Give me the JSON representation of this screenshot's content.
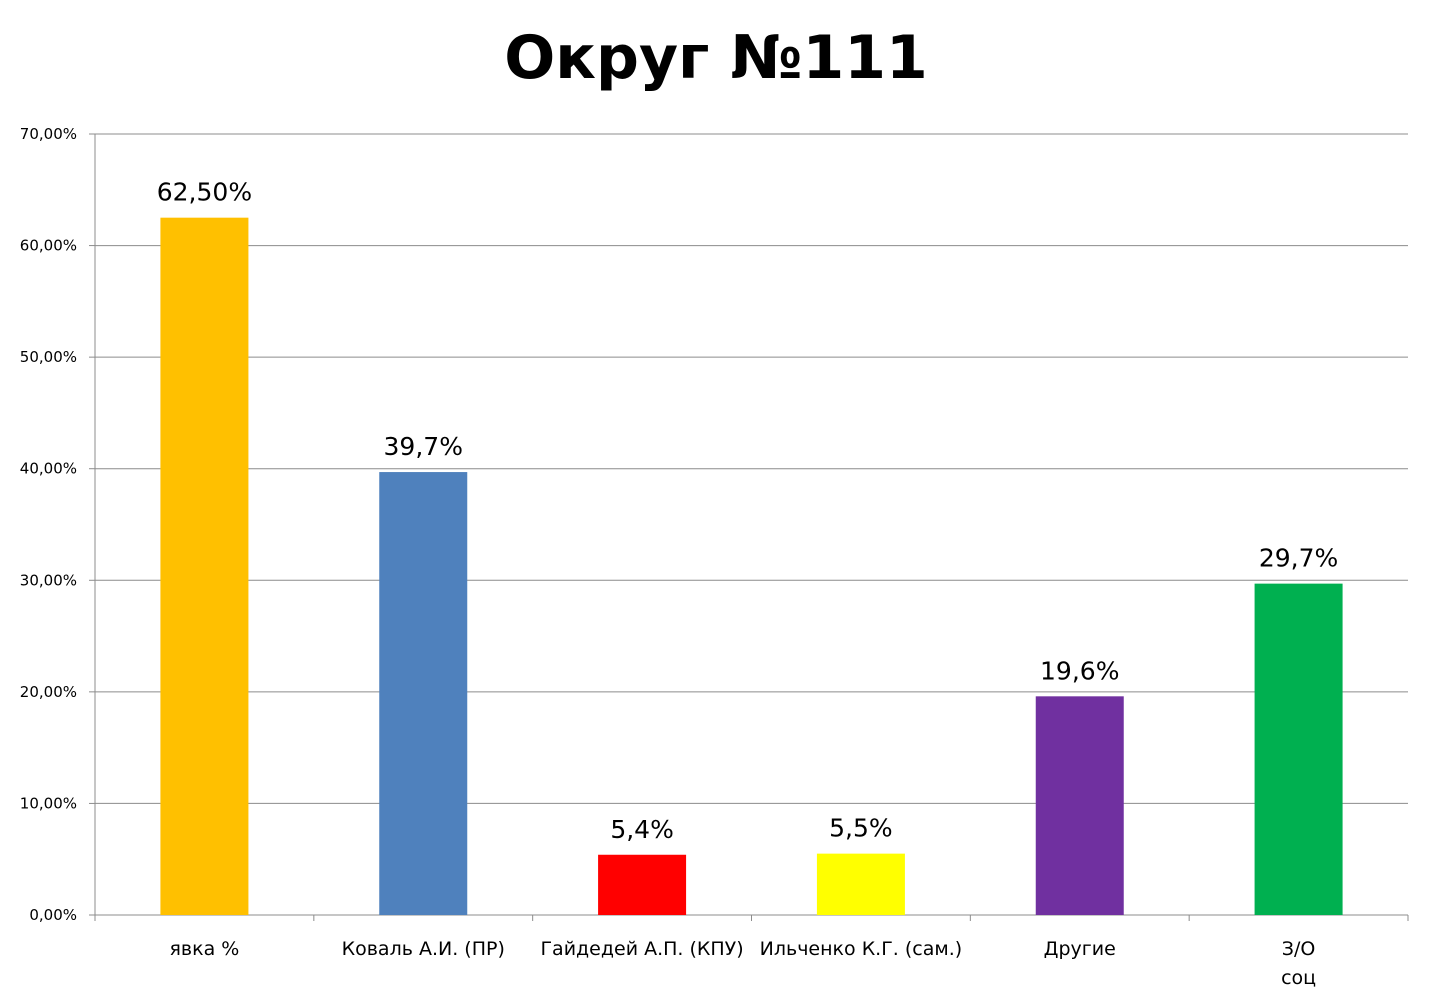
{
  "chart_data": {
    "type": "bar",
    "title": "Округ №111",
    "xlabel": "",
    "ylabel": "",
    "ylim": [
      0,
      70
    ],
    "y_tick_labels": [
      "0,00%",
      "10,00%",
      "20,00%",
      "30,00%",
      "40,00%",
      "50,00%",
      "60,00%",
      "70,00%"
    ],
    "grid": true,
    "legend": "none",
    "categories": [
      [
        "явка %"
      ],
      [
        "Коваль А.И. (ПР)"
      ],
      [
        "Гайдедей А.П. (КПУ)"
      ],
      [
        "Ильченко К.Г. (сам.)"
      ],
      [
        "Другие"
      ],
      [
        "З/О",
        "соц"
      ]
    ],
    "values": [
      62.5,
      39.7,
      5.4,
      5.5,
      19.6,
      29.7
    ],
    "data_labels": [
      "62,50%",
      "39,7%",
      "5,4%",
      "5,5%",
      "19,6%",
      "29,7%"
    ],
    "colors": [
      "#FFC000",
      "#4F81BD",
      "#FF0000",
      "#FFFF00",
      "#7030A0",
      "#00B050"
    ]
  }
}
